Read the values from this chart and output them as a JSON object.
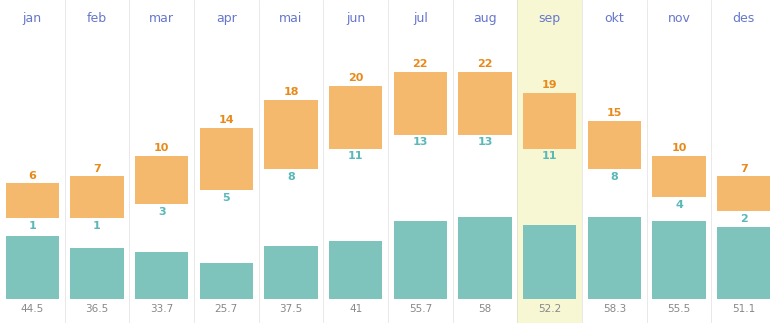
{
  "months": [
    "jan",
    "feb",
    "mar",
    "apr",
    "mai",
    "jun",
    "jul",
    "aug",
    "sep",
    "okt",
    "nov",
    "des"
  ],
  "temp_min": [
    1,
    1,
    3,
    5,
    8,
    11,
    13,
    13,
    11,
    8,
    4,
    2
  ],
  "temp_max": [
    6,
    7,
    10,
    14,
    18,
    20,
    22,
    22,
    19,
    15,
    10,
    7
  ],
  "rainfall": [
    44.5,
    36.5,
    33.7,
    25.7,
    37.5,
    41,
    55.7,
    58,
    52.2,
    58.3,
    55.5,
    51.1
  ],
  "highlight_month_idx": 8,
  "sep_bg_color": "#f7f7d4",
  "bar_orange_color": "#f5b96e",
  "bar_teal_color": "#7fc4bc",
  "month_label_color": "#6677cc",
  "temp_max_color": "#e88a1a",
  "temp_min_color": "#5ab8b8",
  "rainfall_label_color": "#888888",
  "background_color": "#ffffff",
  "fig_width": 7.76,
  "fig_height": 3.23
}
